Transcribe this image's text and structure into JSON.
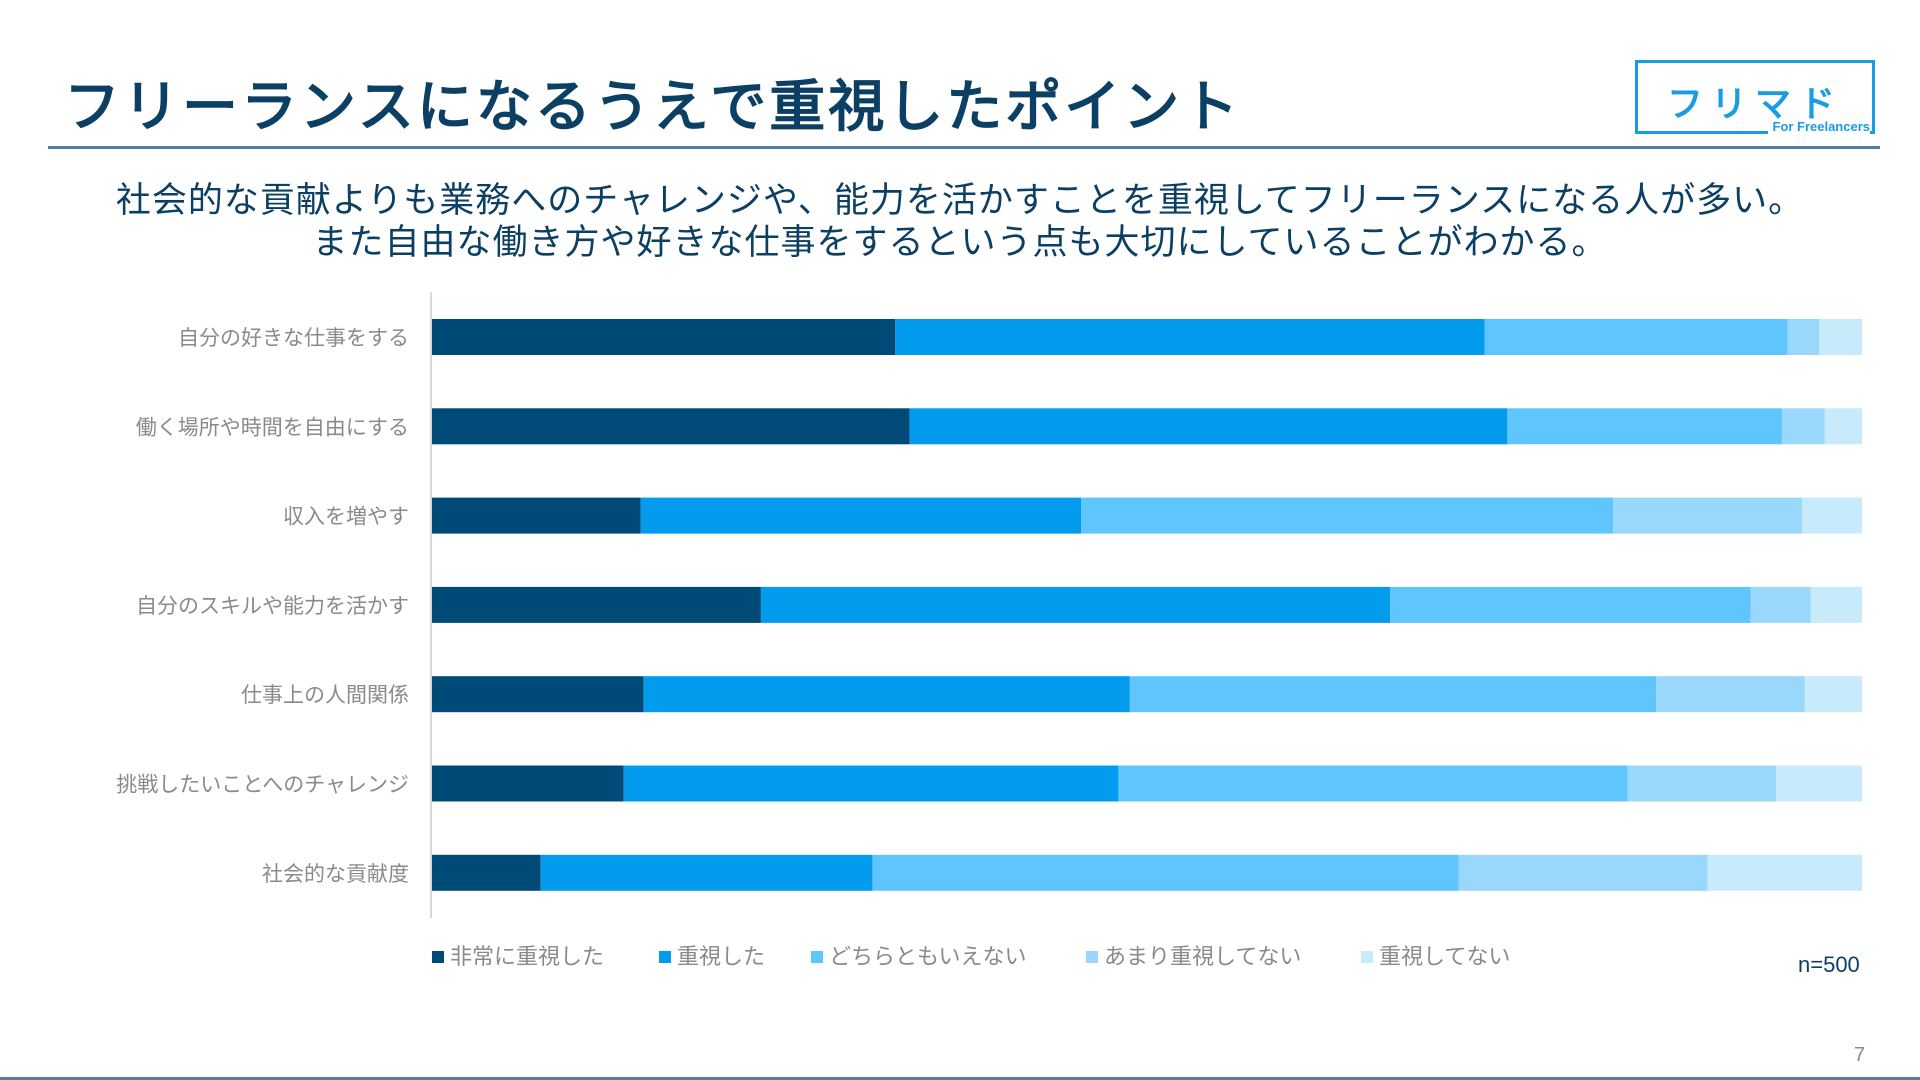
{
  "header": {
    "title": "フリーランスになるうえで重視したポイント",
    "logo_main": "フリマド",
    "logo_sub": "For Freelancers"
  },
  "summary": {
    "line1": "社会的な貢献よりも業務へのチャレンジや、能力を活かすことを重視してフリーランスになる人が多い。",
    "line2": "また自由な働き方や好きな仕事をするという点も大切にしていることがわかる。"
  },
  "sample_size": "n=500",
  "page_number": "7",
  "colors": {
    "title": "#0b3f63",
    "accent": "#1a9de0",
    "series": [
      "#004a77",
      "#039bee",
      "#5fc5fd",
      "#99d7fb",
      "#c8ebfc"
    ]
  },
  "chart_data": {
    "type": "bar",
    "orientation": "horizontal",
    "stacked": true,
    "normalized": true,
    "categories": [
      "自分の好きな仕事をする",
      "働く場所や時間を自由にする",
      "収入を増やす",
      "自分のスキルや能力を活かす",
      "仕事上の人間関係",
      "挑戦したいことへのチャレンジ",
      "社会的な貢献度"
    ],
    "series": [
      {
        "name": "非常に重視した",
        "values": [
          32.4,
          33.4,
          14.6,
          23.0,
          14.8,
          13.4,
          7.6
        ]
      },
      {
        "name": "重視した",
        "values": [
          41.2,
          41.8,
          30.8,
          44.0,
          34.0,
          34.6,
          23.2
        ]
      },
      {
        "name": "どちらともいえない",
        "values": [
          21.2,
          19.2,
          37.2,
          25.2,
          36.8,
          35.6,
          41.0
        ]
      },
      {
        "name": "あまり重視してない",
        "values": [
          2.2,
          3.0,
          13.2,
          4.2,
          10.4,
          10.4,
          17.4
        ]
      },
      {
        "name": "重視してない",
        "values": [
          3.0,
          2.6,
          4.2,
          3.6,
          4.0,
          6.0,
          10.8
        ]
      }
    ],
    "xlim": [
      0,
      100
    ],
    "grid": false,
    "legend_position": "bottom"
  }
}
